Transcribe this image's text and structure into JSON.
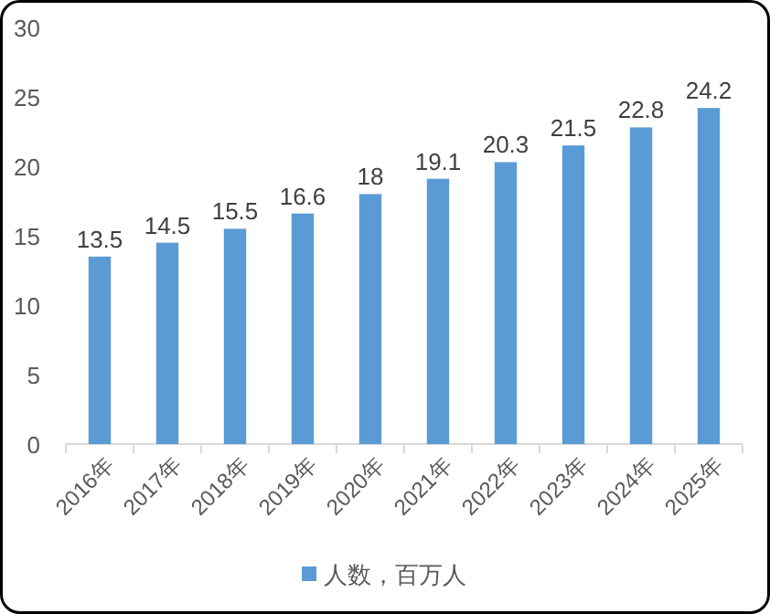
{
  "chart_data": {
    "type": "bar",
    "categories": [
      "2016年",
      "2017年",
      "2018年",
      "2019年",
      "2020年",
      "2021年",
      "2022年",
      "2023年",
      "2024年",
      "2025年"
    ],
    "series": [
      {
        "name": "人数，百万人",
        "color": "#5b9bd5",
        "values": [
          13.5,
          14.5,
          15.5,
          16.6,
          18,
          19.1,
          20.3,
          21.5,
          22.8,
          24.2
        ]
      }
    ],
    "ylim": [
      0,
      30
    ],
    "yticks": [
      0,
      5,
      10,
      15,
      20,
      25,
      30
    ],
    "data_labels": true,
    "legend": "bottom"
  }
}
